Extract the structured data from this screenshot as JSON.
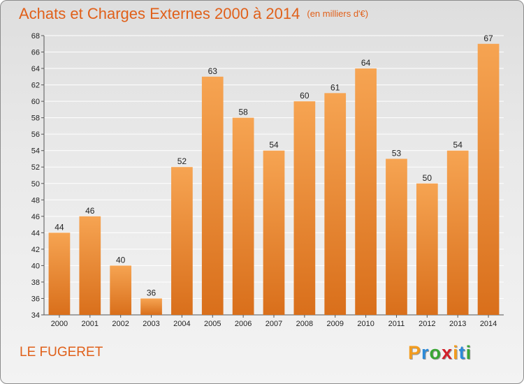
{
  "title": {
    "main": "Achats et Charges Externes 2000 à 2014",
    "unit": "(en milliers d'€)"
  },
  "place_name": "LE FUGERET",
  "logo": {
    "text": "Proxiti",
    "letters": [
      "P",
      "r",
      "o",
      "x",
      "i",
      "t",
      "i"
    ]
  },
  "colors": {
    "bar_light": "#f6a452",
    "bar_dark": "#d96f1b",
    "title": "#e0601a",
    "grid": "#ffffff",
    "axis_text": "#222222"
  },
  "chart_data": {
    "type": "bar",
    "title": "Achats et Charges Externes 2000 à 2014",
    "subtitle": "(en milliers d'€)",
    "xlabel": "",
    "ylabel": "",
    "categories": [
      "2000",
      "2001",
      "2002",
      "2003",
      "2004",
      "2005",
      "2006",
      "2007",
      "2008",
      "2009",
      "2010",
      "2011",
      "2012",
      "2013",
      "2014"
    ],
    "values": [
      44,
      46,
      40,
      36,
      52,
      63,
      58,
      54,
      60,
      61,
      64,
      53,
      50,
      54,
      67
    ],
    "ylim": [
      34,
      68
    ],
    "yticks": [
      34,
      36,
      38,
      40,
      42,
      44,
      46,
      48,
      50,
      52,
      54,
      56,
      58,
      60,
      62,
      64,
      66,
      68
    ],
    "grid": true,
    "data_labels": true,
    "legend": "none"
  }
}
